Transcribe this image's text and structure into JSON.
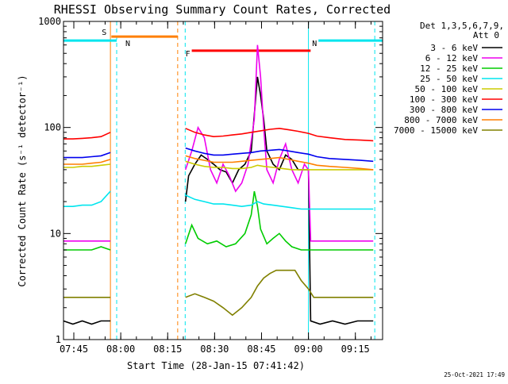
{
  "title": "RHESSI Observing Summary Count Rates, Corrected",
  "legend_header": [
    "Det 1,3,5,6,7,9,",
    "Att 0"
  ],
  "footer_date": "25-Oct-2021 17:49",
  "chart_data": {
    "type": "line",
    "title": "RHESSI Observing Summary Count Rates, Corrected",
    "xlabel": "Start Time (28-Jan-15 07:41:42)",
    "ylabel": "Corrected Count Rate (s⁻¹ detector⁻¹)",
    "y_scale": "log",
    "ylim": [
      1,
      1000
    ],
    "xlim_minutes_since_0741_42": [
      0,
      102
    ],
    "x_ticks": [
      {
        "label": "07:45",
        "t": 3.3
      },
      {
        "label": "08:00",
        "t": 18.3
      },
      {
        "label": "08:15",
        "t": 33.3
      },
      {
        "label": "08:30",
        "t": 48.3
      },
      {
        "label": "08:45",
        "t": 63.3
      },
      {
        "label": "09:00",
        "t": 78.3
      },
      {
        "label": "09:15",
        "t": 93.3
      }
    ],
    "y_ticks": [
      {
        "label": "1",
        "v": 1
      },
      {
        "label": "10",
        "v": 10
      },
      {
        "label": "100",
        "v": 100
      },
      {
        "label": "1000",
        "v": 1000
      }
    ],
    "gaps_minutes": [
      [
        15.3,
        38.9
      ]
    ],
    "flag_bars": [
      {
        "label": "S",
        "color": "#ff7f00",
        "t0": 15.3,
        "t1": 36.5,
        "v": 720
      },
      {
        "label": "N",
        "color": "#00e5ee",
        "t0": 0,
        "t1": 17.0,
        "v": 660
      },
      {
        "label": "N",
        "color": "#00e5ee",
        "t0": 81.5,
        "t1": 102,
        "v": 660
      },
      {
        "label": "F",
        "color": "#ff0000",
        "t0": 41.0,
        "t1": 79.0,
        "v": 530
      }
    ],
    "vlines": [
      {
        "t": 15.0,
        "color": "#ff7f00",
        "dash": false
      },
      {
        "t": 17.0,
        "color": "#00e5ee",
        "dash": true
      },
      {
        "t": 36.5,
        "color": "#ff7f00",
        "dash": true
      },
      {
        "t": 38.9,
        "color": "#00e5ee",
        "dash": true
      },
      {
        "t": 78.3,
        "color": "#00e5ee",
        "dash": false
      },
      {
        "t": 99.5,
        "color": "#00e5ee",
        "dash": true
      }
    ],
    "series": [
      {
        "name": "3 - 6 keV",
        "color": "#000000",
        "points": [
          [
            0,
            1.5
          ],
          [
            3,
            1.4
          ],
          [
            6,
            1.5
          ],
          [
            9,
            1.4
          ],
          [
            12,
            1.5
          ],
          [
            15,
            1.5
          ],
          [
            39,
            20
          ],
          [
            40,
            35
          ],
          [
            42,
            45
          ],
          [
            44,
            55
          ],
          [
            46,
            50
          ],
          [
            48,
            45
          ],
          [
            50,
            40
          ],
          [
            52,
            38
          ],
          [
            54,
            30
          ],
          [
            56,
            40
          ],
          [
            58,
            45
          ],
          [
            60,
            60
          ],
          [
            62,
            300
          ],
          [
            63,
            200
          ],
          [
            64,
            120
          ],
          [
            65,
            60
          ],
          [
            67,
            45
          ],
          [
            69,
            40
          ],
          [
            71,
            55
          ],
          [
            73,
            50
          ],
          [
            75,
            40
          ],
          [
            77,
            40
          ],
          [
            78.3,
            40
          ],
          [
            79,
            1.5
          ],
          [
            82,
            1.4
          ],
          [
            86,
            1.5
          ],
          [
            90,
            1.4
          ],
          [
            94,
            1.5
          ],
          [
            99,
            1.5
          ]
        ]
      },
      {
        "name": "6 - 12 keV",
        "color": "#ee00ee",
        "points": [
          [
            0,
            8.5
          ],
          [
            3,
            8.5
          ],
          [
            6,
            8.5
          ],
          [
            9,
            8.5
          ],
          [
            12,
            8.5
          ],
          [
            15,
            8.5
          ],
          [
            39,
            40
          ],
          [
            41,
            60
          ],
          [
            43,
            100
          ],
          [
            45,
            80
          ],
          [
            47,
            40
          ],
          [
            49,
            30
          ],
          [
            51,
            45
          ],
          [
            53,
            35
          ],
          [
            55,
            25
          ],
          [
            57,
            30
          ],
          [
            59,
            45
          ],
          [
            61,
            120
          ],
          [
            62,
            600
          ],
          [
            63,
            300
          ],
          [
            64,
            100
          ],
          [
            65,
            40
          ],
          [
            67,
            30
          ],
          [
            69,
            50
          ],
          [
            71,
            70
          ],
          [
            73,
            40
          ],
          [
            75,
            30
          ],
          [
            77,
            45
          ],
          [
            78.3,
            40
          ],
          [
            79,
            8.5
          ],
          [
            85,
            8.5
          ],
          [
            90,
            8.5
          ],
          [
            99,
            8.5
          ]
        ]
      },
      {
        "name": "12 - 25 keV",
        "color": "#00cc00",
        "points": [
          [
            0,
            7
          ],
          [
            3,
            7
          ],
          [
            6,
            7
          ],
          [
            9,
            7
          ],
          [
            12,
            7.5
          ],
          [
            15,
            7
          ],
          [
            39,
            8
          ],
          [
            41,
            12
          ],
          [
            43,
            9
          ],
          [
            46,
            8
          ],
          [
            49,
            8.5
          ],
          [
            52,
            7.5
          ],
          [
            55,
            8
          ],
          [
            58,
            10
          ],
          [
            60,
            15
          ],
          [
            61,
            25
          ],
          [
            62,
            18
          ],
          [
            63,
            11
          ],
          [
            65,
            8
          ],
          [
            67,
            9
          ],
          [
            69,
            10
          ],
          [
            71,
            8.5
          ],
          [
            73,
            7.5
          ],
          [
            76,
            7
          ],
          [
            78.3,
            7
          ],
          [
            80,
            7
          ],
          [
            85,
            7
          ],
          [
            90,
            7
          ],
          [
            99,
            7
          ]
        ]
      },
      {
        "name": "25 - 50 keV",
        "color": "#00e5ee",
        "points": [
          [
            0,
            18
          ],
          [
            3,
            18
          ],
          [
            6,
            18.5
          ],
          [
            9,
            18.5
          ],
          [
            12,
            20
          ],
          [
            15,
            25
          ],
          [
            39,
            23
          ],
          [
            42,
            21
          ],
          [
            45,
            20
          ],
          [
            48,
            19
          ],
          [
            51,
            19
          ],
          [
            54,
            18.5
          ],
          [
            57,
            18
          ],
          [
            60,
            18.5
          ],
          [
            62,
            20
          ],
          [
            64,
            19
          ],
          [
            67,
            18.5
          ],
          [
            70,
            18
          ],
          [
            73,
            17.5
          ],
          [
            76,
            17
          ],
          [
            78.3,
            17
          ],
          [
            80,
            17
          ],
          [
            85,
            17
          ],
          [
            90,
            17
          ],
          [
            99,
            17
          ]
        ]
      },
      {
        "name": "50 - 100 keV",
        "color": "#cccc00",
        "points": [
          [
            0,
            42
          ],
          [
            3,
            42
          ],
          [
            6,
            43
          ],
          [
            9,
            43
          ],
          [
            12,
            44
          ],
          [
            15,
            45
          ],
          [
            39,
            48
          ],
          [
            42,
            45
          ],
          [
            45,
            43
          ],
          [
            48,
            42
          ],
          [
            51,
            42
          ],
          [
            54,
            41
          ],
          [
            57,
            41
          ],
          [
            60,
            42
          ],
          [
            62,
            44
          ],
          [
            64,
            43
          ],
          [
            67,
            42
          ],
          [
            70,
            41
          ],
          [
            73,
            40
          ],
          [
            76,
            40
          ],
          [
            78.3,
            40
          ],
          [
            82,
            40
          ],
          [
            90,
            40
          ],
          [
            99,
            40
          ]
        ]
      },
      {
        "name": "100 - 300 keV",
        "color": "#ff0000",
        "points": [
          [
            0,
            78
          ],
          [
            3,
            78
          ],
          [
            6,
            79
          ],
          [
            9,
            80
          ],
          [
            12,
            82
          ],
          [
            15,
            90
          ],
          [
            39,
            98
          ],
          [
            42,
            90
          ],
          [
            45,
            85
          ],
          [
            48,
            82
          ],
          [
            51,
            83
          ],
          [
            54,
            85
          ],
          [
            57,
            87
          ],
          [
            60,
            90
          ],
          [
            63,
            93
          ],
          [
            66,
            96
          ],
          [
            69,
            98
          ],
          [
            72,
            95
          ],
          [
            75,
            92
          ],
          [
            78.3,
            88
          ],
          [
            81,
            83
          ],
          [
            85,
            80
          ],
          [
            90,
            77
          ],
          [
            95,
            76
          ],
          [
            99,
            75
          ]
        ]
      },
      {
        "name": "300 - 800 keV",
        "color": "#0000ee",
        "points": [
          [
            0,
            52
          ],
          [
            3,
            52
          ],
          [
            6,
            52
          ],
          [
            9,
            53
          ],
          [
            12,
            54
          ],
          [
            15,
            58
          ],
          [
            39,
            64
          ],
          [
            42,
            60
          ],
          [
            45,
            57
          ],
          [
            48,
            55
          ],
          [
            51,
            55
          ],
          [
            54,
            56
          ],
          [
            57,
            57
          ],
          [
            60,
            58
          ],
          [
            63,
            60
          ],
          [
            66,
            61
          ],
          [
            69,
            62
          ],
          [
            72,
            60
          ],
          [
            75,
            58
          ],
          [
            78.3,
            56
          ],
          [
            81,
            53
          ],
          [
            85,
            51
          ],
          [
            90,
            50
          ],
          [
            95,
            49
          ],
          [
            99,
            48
          ]
        ]
      },
      {
        "name": "800 - 7000 keV",
        "color": "#ff7f00",
        "points": [
          [
            0,
            45
          ],
          [
            3,
            45
          ],
          [
            6,
            45
          ],
          [
            9,
            46
          ],
          [
            12,
            47
          ],
          [
            15,
            50
          ],
          [
            39,
            54
          ],
          [
            42,
            51
          ],
          [
            45,
            49
          ],
          [
            48,
            47
          ],
          [
            51,
            47
          ],
          [
            54,
            47
          ],
          [
            57,
            48
          ],
          [
            60,
            49
          ],
          [
            63,
            50
          ],
          [
            66,
            51
          ],
          [
            69,
            52
          ],
          [
            72,
            50
          ],
          [
            75,
            48
          ],
          [
            78.3,
            46
          ],
          [
            81,
            44
          ],
          [
            85,
            43
          ],
          [
            90,
            42
          ],
          [
            95,
            41
          ],
          [
            99,
            40
          ]
        ]
      },
      {
        "name": "7000 - 15000 keV",
        "color": "#808000",
        "points": [
          [
            0,
            2.5
          ],
          [
            3,
            2.5
          ],
          [
            6,
            2.5
          ],
          [
            9,
            2.5
          ],
          [
            12,
            2.5
          ],
          [
            15,
            2.5
          ],
          [
            39,
            2.5
          ],
          [
            42,
            2.7
          ],
          [
            45,
            2.5
          ],
          [
            48,
            2.3
          ],
          [
            51,
            2.0
          ],
          [
            54,
            1.7
          ],
          [
            57,
            2.0
          ],
          [
            60,
            2.5
          ],
          [
            62,
            3.2
          ],
          [
            64,
            3.8
          ],
          [
            66,
            4.2
          ],
          [
            68,
            4.5
          ],
          [
            70,
            4.5
          ],
          [
            72,
            4.5
          ],
          [
            74,
            4.5
          ],
          [
            76,
            3.6
          ],
          [
            78.3,
            3.0
          ],
          [
            80,
            2.5
          ],
          [
            85,
            2.5
          ],
          [
            90,
            2.5
          ],
          [
            99,
            2.5
          ]
        ]
      }
    ]
  }
}
